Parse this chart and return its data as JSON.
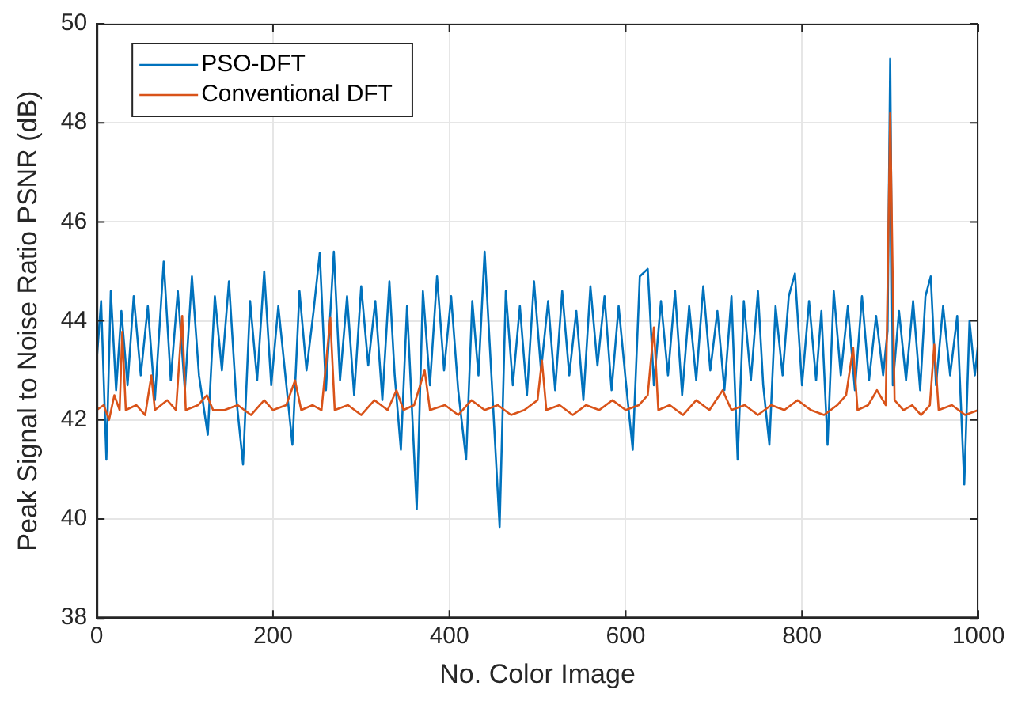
{
  "chart_data": {
    "type": "line",
    "xlabel": "No. Color Image",
    "ylabel": "Peak Signal to Noise Ratio PSNR (dB)",
    "xlim": [
      0,
      1000
    ],
    "xticks": [
      0,
      200,
      400,
      600,
      800,
      1000
    ],
    "ylim": [
      38,
      50
    ],
    "yticks": [
      38,
      40,
      42,
      44,
      46,
      48,
      50
    ],
    "grid": true,
    "legend": "top left",
    "marker": "none",
    "line_style": "solid",
    "series": [
      {
        "name": "PSO-DFT",
        "color": "#0072bd",
        "x": [
          0,
          5,
          11,
          16,
          22,
          28,
          35,
          42,
          50,
          58,
          66,
          76,
          84,
          92,
          100,
          108,
          116,
          126,
          134,
          142,
          150,
          158,
          166,
          174,
          182,
          190,
          198,
          206,
          214,
          222,
          230,
          238,
          246,
          253,
          260,
          269,
          276,
          284,
          292,
          300,
          308,
          316,
          324,
          332,
          338,
          345,
          352,
          363,
          370,
          378,
          386,
          394,
          402,
          410,
          419,
          426,
          433,
          440,
          448,
          457,
          464,
          472,
          480,
          488,
          496,
          504,
          512,
          520,
          528,
          536,
          544,
          552,
          560,
          568,
          576,
          584,
          592,
          600,
          608,
          616,
          625,
          632,
          640,
          648,
          656,
          664,
          672,
          680,
          688,
          696,
          704,
          712,
          720,
          727,
          734,
          742,
          750,
          756,
          763,
          770,
          778,
          785,
          792,
          800,
          808,
          816,
          822,
          829,
          836,
          844,
          852,
          860,
          868,
          876,
          884,
          892,
          897,
          900,
          903,
          910,
          918,
          926,
          934,
          940,
          946,
          952,
          960,
          968,
          976,
          984,
          990,
          996,
          1000
        ],
        "values": [
          43.2,
          44.4,
          41.2,
          44.6,
          42.6,
          44.2,
          42.7,
          44.5,
          42.9,
          44.3,
          42.4,
          45.2,
          42.8,
          44.6,
          42.6,
          44.9,
          42.9,
          41.7,
          44.5,
          43.0,
          44.8,
          42.5,
          41.1,
          44.4,
          42.8,
          45.0,
          42.7,
          44.3,
          42.9,
          41.5,
          44.6,
          43.0,
          44.2,
          45.37,
          42.6,
          45.4,
          42.8,
          44.5,
          42.5,
          44.7,
          43.1,
          44.4,
          42.4,
          44.8,
          42.9,
          41.4,
          44.3,
          40.2,
          44.6,
          42.7,
          44.9,
          43.0,
          44.5,
          42.6,
          41.2,
          44.4,
          42.9,
          45.4,
          42.8,
          39.84,
          44.6,
          42.7,
          44.3,
          42.5,
          44.8,
          43.0,
          44.4,
          42.6,
          44.6,
          42.9,
          44.2,
          42.4,
          44.7,
          43.1,
          44.5,
          42.6,
          44.3,
          42.8,
          41.4,
          44.9,
          45.05,
          42.7,
          44.4,
          42.9,
          44.6,
          42.5,
          44.3,
          42.8,
          44.7,
          43.0,
          44.2,
          42.6,
          44.5,
          41.2,
          44.4,
          42.8,
          44.6,
          42.7,
          41.5,
          44.3,
          42.9,
          44.5,
          44.96,
          42.7,
          44.4,
          42.8,
          44.2,
          41.5,
          44.6,
          42.9,
          44.3,
          42.6,
          44.5,
          42.8,
          44.1,
          42.9,
          43.8,
          49.3,
          42.7,
          44.2,
          42.8,
          44.4,
          42.6,
          44.5,
          44.9,
          42.7,
          44.3,
          42.9,
          44.1,
          40.7,
          44.0,
          42.9,
          43.6
        ]
      },
      {
        "name": "Conventional DFT",
        "color": "#d95319",
        "x": [
          0,
          8,
          14,
          20,
          26,
          29,
          33,
          45,
          55,
          62,
          66,
          80,
          90,
          97,
          101,
          115,
          125,
          132,
          145,
          160,
          175,
          190,
          200,
          215,
          225,
          232,
          245,
          255,
          265,
          270,
          285,
          300,
          315,
          330,
          340,
          348,
          360,
          372,
          378,
          395,
          410,
          425,
          440,
          455,
          470,
          485,
          500,
          505,
          510,
          525,
          540,
          555,
          570,
          585,
          600,
          615,
          625,
          632,
          637,
          650,
          665,
          680,
          695,
          710,
          720,
          735,
          750,
          765,
          780,
          795,
          810,
          825,
          840,
          850,
          858,
          863,
          875,
          885,
          895,
          900,
          905,
          915,
          925,
          935,
          945,
          950,
          955,
          970,
          985,
          1000
        ],
        "values": [
          42.2,
          42.3,
          42.0,
          42.5,
          42.2,
          43.78,
          42.2,
          42.3,
          42.1,
          42.9,
          42.2,
          42.4,
          42.2,
          44.1,
          42.2,
          42.3,
          42.5,
          42.2,
          42.2,
          42.3,
          42.1,
          42.4,
          42.2,
          42.3,
          42.8,
          42.2,
          42.3,
          42.2,
          44.06,
          42.2,
          42.3,
          42.1,
          42.4,
          42.2,
          42.6,
          42.2,
          42.3,
          43.0,
          42.2,
          42.3,
          42.1,
          42.4,
          42.2,
          42.3,
          42.1,
          42.2,
          42.4,
          43.2,
          42.2,
          42.3,
          42.1,
          42.3,
          42.2,
          42.4,
          42.2,
          42.3,
          42.5,
          43.87,
          42.2,
          42.3,
          42.1,
          42.4,
          42.2,
          42.6,
          42.2,
          42.3,
          42.1,
          42.3,
          42.2,
          42.4,
          42.2,
          42.1,
          42.3,
          42.5,
          43.46,
          42.2,
          42.3,
          42.6,
          42.3,
          48.2,
          42.4,
          42.2,
          42.3,
          42.1,
          42.3,
          43.52,
          42.2,
          42.3,
          42.1,
          42.2
        ]
      }
    ]
  }
}
